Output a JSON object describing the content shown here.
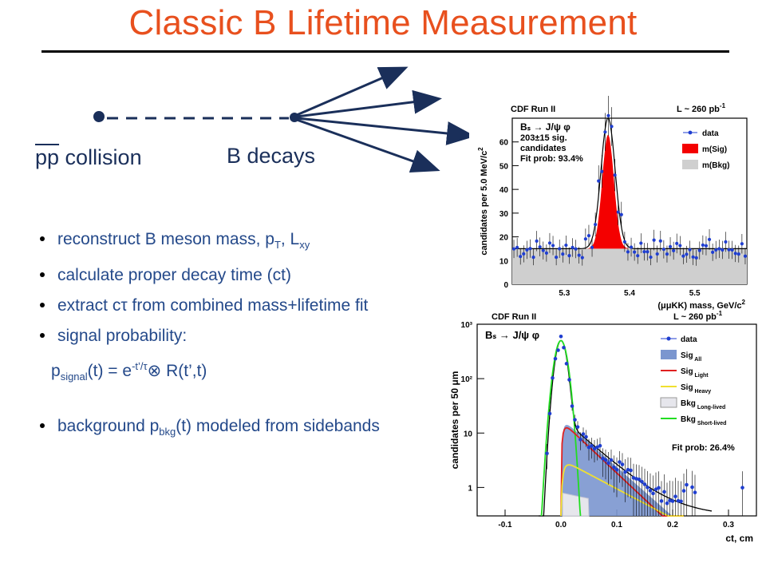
{
  "slide": {
    "title": "Classic B Lifetime Measurement",
    "collision_label_pp": "pp",
    "collision_label_rest": " collision",
    "decay_label": "B decays",
    "bullets": [
      {
        "pre": "reconstruct B meson mass, p",
        "sub1": "T",
        "mid": ", L",
        "sub2": "xy"
      },
      {
        "text": "calculate proper decay time (ct)"
      },
      {
        "text": "extract cτ from combined mass+lifetime fit"
      },
      {
        "text": "signal probability:"
      },
      {
        "text": "background p",
        "sub": "bkg",
        "post": "(t) modeled from sidebands"
      }
    ],
    "formula": {
      "p": "p",
      "sub": "signal",
      "mid": "(t) = e",
      "sup": "-t’/τ",
      "post": "⊗ R(t’,t)"
    }
  },
  "chart_data": [
    {
      "type": "histogram",
      "header_left": "CDF Run II",
      "header_right": "L ~ 260 pb",
      "header_right_sup": "-1",
      "ylabel": "candidates per 5.0 MeV/c",
      "ylabel_sup": "2",
      "xlabel": "(μμKK) mass, GeV/c",
      "xlabel_sup": "2",
      "annotation": [
        "Bₛ → J/ψ φ",
        "203±15 sig.",
        "candidates",
        "Fit prob: 93.4%"
      ],
      "legend": [
        "data",
        "m(Sig)",
        "m(Bkg)"
      ],
      "xlim": [
        5.22,
        5.58
      ],
      "ylim": [
        0,
        70
      ],
      "xticks": [
        5.3,
        5.4,
        5.5
      ],
      "yticks": [
        0,
        10,
        20,
        30,
        40,
        50,
        60
      ],
      "background_level": 15,
      "signal_peak": {
        "mean": 5.367,
        "height": 48,
        "sigma": 0.009
      },
      "colors": {
        "signal": "#f40000",
        "background": "#cfcfcf",
        "data": "#1f3ed0"
      }
    },
    {
      "type": "histogram-log",
      "header_left": "CDF Run II",
      "header_right": "L ~ 260 pb",
      "header_right_sup": "-1",
      "ylabel": "candidates per 50 μm",
      "xlabel": "ct, cm",
      "annotation": "Bₛ → J/ψ φ",
      "legend": [
        {
          "label": "data",
          "sub": ""
        },
        {
          "label": "Sig",
          "sub": "All"
        },
        {
          "label": "Sig",
          "sub": "Light"
        },
        {
          "label": "Sig",
          "sub": "Heavy"
        },
        {
          "label": "Bkg",
          "sub": "Long-lived"
        },
        {
          "label": "Bkg",
          "sub": "Short-lived"
        }
      ],
      "fit_prob": "Fit prob: 26.4%",
      "xlim": [
        -0.15,
        0.35
      ],
      "ylog": [
        0.3,
        1000
      ],
      "xticks": [
        "-0.1",
        "0.0",
        "0.1",
        "0.2",
        "0.3"
      ],
      "xtick_values": [
        -0.1,
        0.0,
        0.1,
        0.2,
        0.3
      ],
      "yticks": [
        "1",
        "10",
        "10²",
        "10³"
      ],
      "ytick_values": [
        1,
        10,
        100,
        1000
      ],
      "peak": 500,
      "colors": {
        "sig_all": "#7b96cf",
        "sig_light": "#e02020",
        "sig_heavy": "#f0e030",
        "bkg_short": "#22dd22",
        "data": "#1f3ed0"
      }
    }
  ]
}
